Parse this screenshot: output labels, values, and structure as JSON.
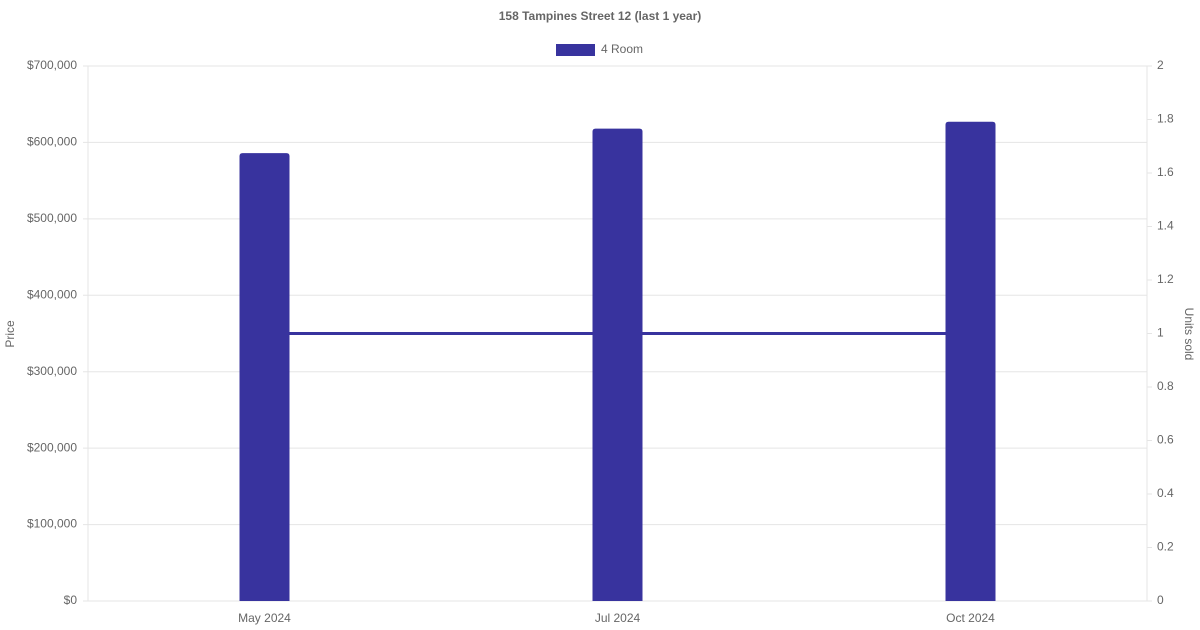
{
  "chart_data": {
    "type": "bar-line",
    "title": "158 Tampines Street 12 (last 1 year)",
    "categories": [
      "May 2024",
      "Jul 2024",
      "Oct 2024"
    ],
    "series": [
      {
        "name": "4 Room",
        "type": "bar",
        "color": "#38339e",
        "values": [
          586000,
          618000,
          627000
        ]
      },
      {
        "type": "line",
        "axis": "y2",
        "color": "#38339e",
        "values": [
          1,
          1,
          1
        ]
      }
    ],
    "ylabel": "Price",
    "y2label": "Units sold",
    "ylim": [
      0,
      700000
    ],
    "yticks": [
      {
        "value": 0,
        "label": "$0"
      },
      {
        "value": 100000,
        "label": "$100,000"
      },
      {
        "value": 200000,
        "label": "$200,000"
      },
      {
        "value": 300000,
        "label": "$300,000"
      },
      {
        "value": 400000,
        "label": "$400,000"
      },
      {
        "value": 500000,
        "label": "$500,000"
      },
      {
        "value": 600000,
        "label": "$600,000"
      },
      {
        "value": 700000,
        "label": "$700,000"
      }
    ],
    "y2lim": [
      0,
      2
    ],
    "y2ticks": [
      0,
      0.2,
      0.4,
      0.6,
      0.8,
      1,
      1.2,
      1.4,
      1.6,
      1.8,
      2
    ],
    "grid": true,
    "legend": "top"
  }
}
